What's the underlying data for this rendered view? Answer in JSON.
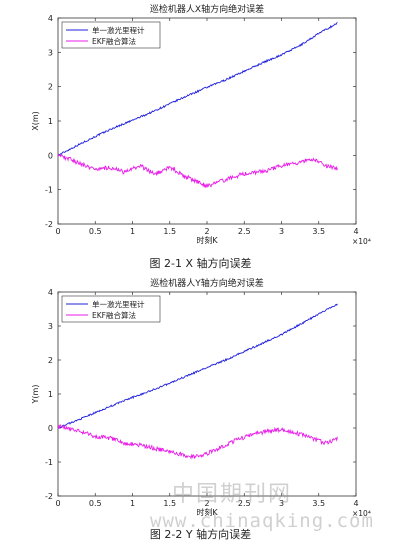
{
  "charts": [
    {
      "caption": "图 2-1 X 轴方向误差",
      "chart_data": {
        "type": "line",
        "title": "巡检机器人X轴方向绝对误差",
        "xlabel": "时刻K",
        "ylabel": "X(m)",
        "xlim": [
          0,
          4
        ],
        "ylim": [
          -2,
          4
        ],
        "x_ticks": [
          "0",
          "0.5",
          "1",
          "1.5",
          "2",
          "2.5",
          "3",
          "3.5",
          "4"
        ],
        "y_ticks": [
          "-2",
          "-1",
          "0",
          "1",
          "2",
          "3",
          "4"
        ],
        "x_multiplier": "×10⁴",
        "legend_position": "top-left",
        "series": [
          {
            "name": "单一激光里程计",
            "color": "#1f1fdd",
            "x": [
              0,
              0.25,
              0.5,
              0.75,
              1.0,
              1.25,
              1.5,
              1.75,
              2.0,
              2.25,
              2.5,
              2.75,
              3.0,
              3.25,
              3.5,
              3.75
            ],
            "y": [
              0.0,
              0.28,
              0.55,
              0.8,
              1.02,
              1.25,
              1.5,
              1.75,
              1.98,
              2.2,
              2.45,
              2.7,
              2.93,
              3.2,
              3.55,
              3.85
            ]
          },
          {
            "name": "EKF融合算法",
            "color": "#e81ee8",
            "x": [
              0,
              0.15,
              0.3,
              0.5,
              0.7,
              0.9,
              1.1,
              1.3,
              1.5,
              1.7,
              1.9,
              2.0,
              2.2,
              2.4,
              2.6,
              2.8,
              3.0,
              3.2,
              3.4,
              3.6,
              3.75
            ],
            "y": [
              0.0,
              -0.1,
              -0.25,
              -0.4,
              -0.35,
              -0.5,
              -0.3,
              -0.55,
              -0.35,
              -0.6,
              -0.8,
              -0.9,
              -0.75,
              -0.6,
              -0.5,
              -0.45,
              -0.3,
              -0.25,
              -0.1,
              -0.3,
              -0.4
            ]
          }
        ]
      }
    },
    {
      "caption": "图 2-2 Y 轴方向误差",
      "chart_data": {
        "type": "line",
        "title": "巡检机器人Y轴方向绝对误差",
        "xlabel": "时刻K",
        "ylabel": "Y(m)",
        "xlim": [
          0,
          4
        ],
        "ylim": [
          -2,
          4
        ],
        "x_ticks": [
          "0",
          "0.5",
          "1",
          "1.5",
          "2",
          "2.5",
          "3",
          "3.5",
          "4"
        ],
        "y_ticks": [
          "-2",
          "-1",
          "0",
          "1",
          "2",
          "3",
          "4"
        ],
        "x_multiplier": "×10⁴",
        "legend_position": "top-left",
        "series": [
          {
            "name": "单一激光里程计",
            "color": "#1f1fdd",
            "x": [
              0,
              0.25,
              0.5,
              0.75,
              1.0,
              1.25,
              1.5,
              1.75,
              2.0,
              2.25,
              2.5,
              2.75,
              3.0,
              3.25,
              3.5,
              3.75
            ],
            "y": [
              0.0,
              0.22,
              0.45,
              0.68,
              0.9,
              1.1,
              1.32,
              1.55,
              1.78,
              2.0,
              2.25,
              2.5,
              2.75,
              3.05,
              3.35,
              3.65
            ]
          },
          {
            "name": "EKF融合算法",
            "color": "#e81ee8",
            "x": [
              0,
              0.15,
              0.3,
              0.5,
              0.7,
              0.9,
              1.1,
              1.3,
              1.5,
              1.7,
              1.85,
              2.0,
              2.2,
              2.4,
              2.6,
              2.8,
              3.0,
              3.2,
              3.4,
              3.6,
              3.75
            ],
            "y": [
              0.05,
              0.0,
              -0.1,
              -0.25,
              -0.3,
              -0.45,
              -0.5,
              -0.6,
              -0.7,
              -0.8,
              -0.85,
              -0.75,
              -0.55,
              -0.35,
              -0.2,
              -0.1,
              -0.05,
              -0.15,
              -0.3,
              -0.45,
              -0.3
            ]
          }
        ]
      }
    }
  ],
  "watermark": {
    "line1": "中国期刊网",
    "line2": "www.chinaqking.com"
  }
}
